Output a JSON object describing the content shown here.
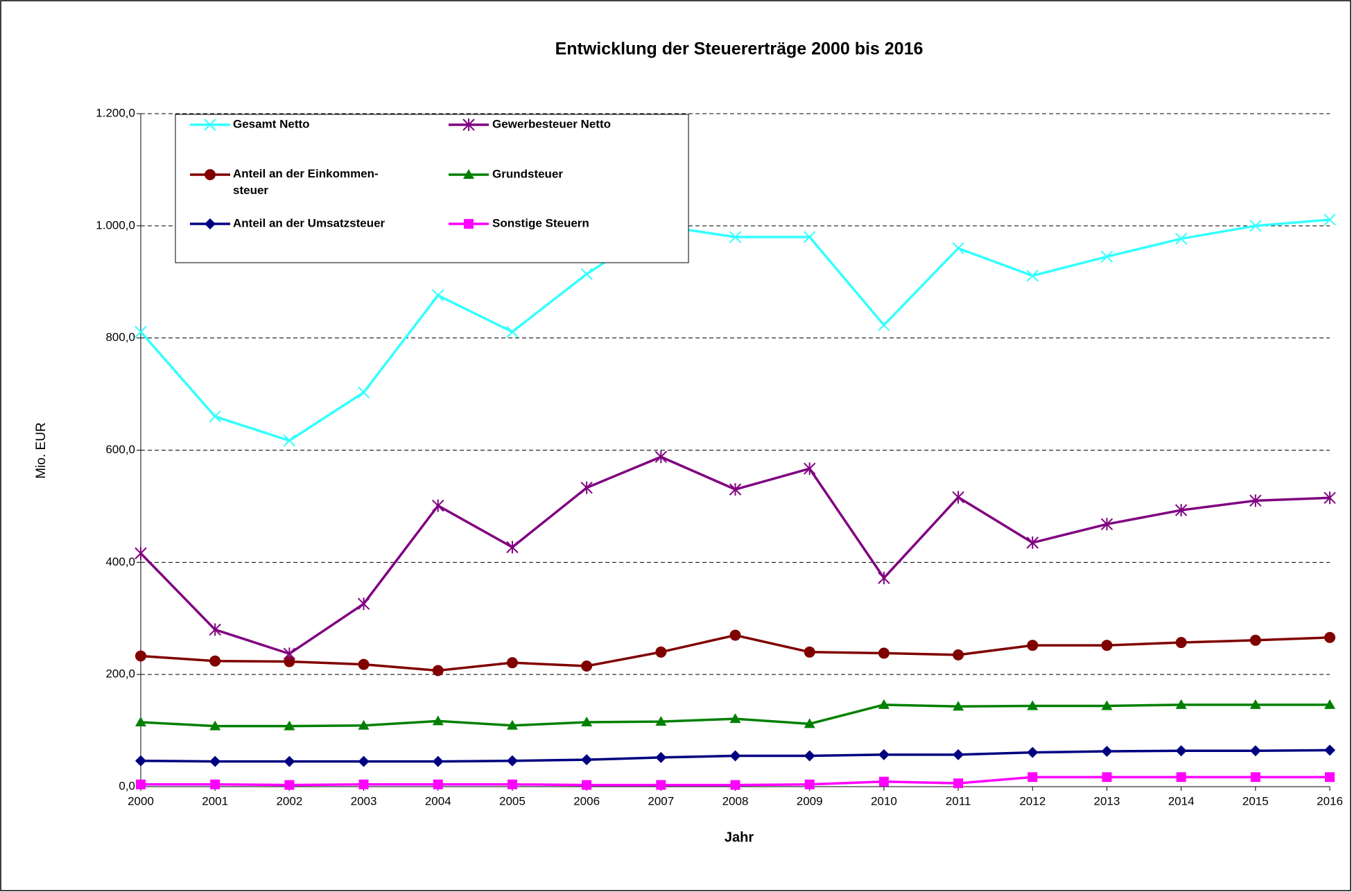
{
  "chart_data": {
    "type": "line",
    "title": "Entwicklung der Steuererträge 2000 bis 2016",
    "x_label": "Jahr",
    "y_label": "Mio. EUR",
    "categories": [
      "2000",
      "2001",
      "2002",
      "2003",
      "2004",
      "2005",
      "2006",
      "2007",
      "2008",
      "2009",
      "2010",
      "2011",
      "2012",
      "2013",
      "2014",
      "2015",
      "2016"
    ],
    "ylim": [
      0,
      1200
    ],
    "yticks": [
      {
        "value": 0,
        "label": "0,0"
      },
      {
        "value": 200,
        "label": "200,0"
      },
      {
        "value": 400,
        "label": "400,0"
      },
      {
        "value": 600,
        "label": "600,0"
      },
      {
        "value": 800,
        "label": "800,0"
      },
      {
        "value": 1000,
        "label": "1.000,0"
      },
      {
        "value": 1200,
        "label": "1.200,0"
      }
    ],
    "grid": true,
    "series": [
      {
        "name": "Gesamt Netto",
        "color": "#33ffff",
        "marker": "x",
        "values": [
          811,
          660,
          617,
          703,
          876,
          811,
          914,
          1000,
          980,
          980,
          823,
          960,
          911,
          945,
          977,
          1000,
          1011
        ]
      },
      {
        "name": "Gewerbesteuer Netto",
        "color": "#800080",
        "marker": "star",
        "values": [
          416,
          280,
          237,
          326,
          501,
          427,
          533,
          588,
          530,
          567,
          372,
          516,
          435,
          468,
          493,
          510,
          515
        ]
      },
      {
        "name": "Anteil an der Einkommen-steuer",
        "color": "#800000",
        "marker": "circle",
        "values": [
          233,
          224,
          223,
          218,
          207,
          221,
          215,
          240,
          270,
          240,
          238,
          235,
          252,
          252,
          257,
          261,
          266
        ]
      },
      {
        "name": "Grundsteuer",
        "color": "#008000",
        "marker": "triangle",
        "values": [
          115,
          108,
          108,
          109,
          117,
          109,
          115,
          116,
          121,
          112,
          146,
          143,
          144,
          144,
          146,
          146,
          146
        ]
      },
      {
        "name": "Anteil an der Umsatzsteuer",
        "color": "#000080",
        "marker": "diamond",
        "values": [
          46,
          45,
          45,
          45,
          45,
          46,
          48,
          52,
          55,
          55,
          57,
          57,
          61,
          63,
          64,
          64,
          65
        ]
      },
      {
        "name": "Sonstige Steuern",
        "color": "#ff00ff",
        "marker": "square",
        "values": [
          4,
          4,
          3,
          4,
          4,
          4,
          3,
          3,
          3,
          4,
          9,
          6,
          17,
          17,
          17,
          17,
          17
        ]
      }
    ]
  }
}
